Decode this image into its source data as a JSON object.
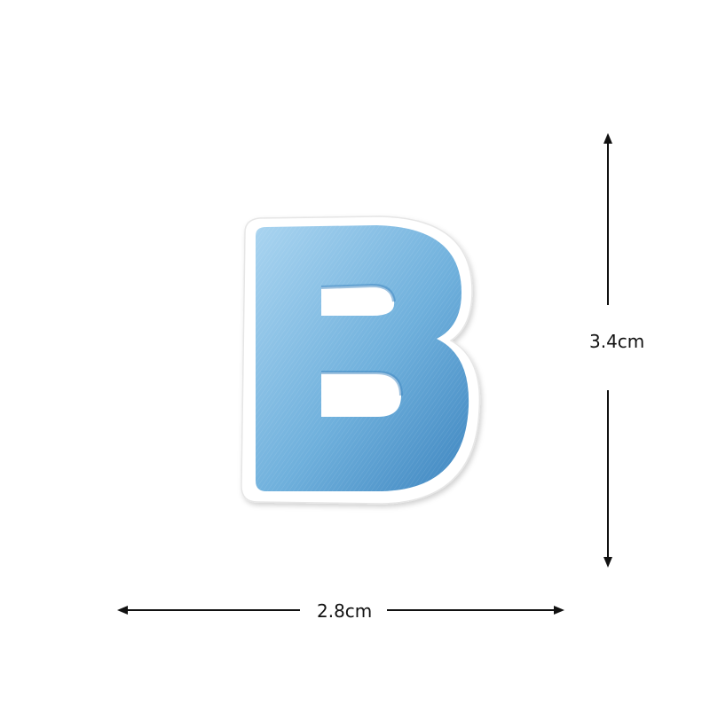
{
  "patch": {
    "letter": "B",
    "thread_color": "#6fb0dc",
    "thread_dark": "#3f86c0",
    "thread_light": "#a9d4f0",
    "backing_color": "#ffffff"
  },
  "dimensions": {
    "height_label": "3.4cm",
    "width_label": "2.8cm",
    "line_color": "#111111"
  }
}
